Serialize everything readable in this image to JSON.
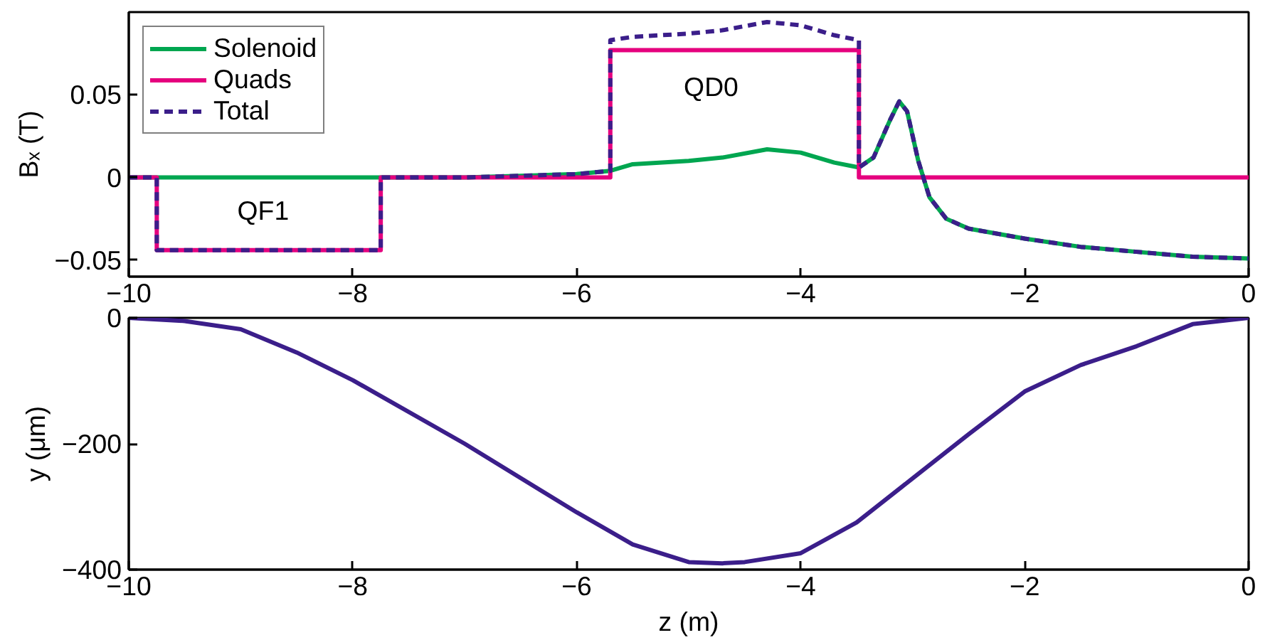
{
  "chart_data": [
    {
      "type": "line",
      "ylabel": "Bₓ (T)",
      "xlim": [
        -10,
        0
      ],
      "ylim": [
        -0.06,
        0.1
      ],
      "xticks": [
        -10,
        -8,
        -6,
        -4,
        -2,
        0
      ],
      "yticks": [
        -0.05,
        0,
        0.05
      ],
      "grid": false,
      "legend": "top left",
      "marker": "none",
      "annotations": [
        "QF1",
        "QD0"
      ],
      "series": [
        {
          "name": "Solenoid",
          "color": "#00a650",
          "line_style": "solid",
          "x": [
            -10,
            -7,
            -6.5,
            -6,
            -5.7,
            -5.5,
            -5,
            -4.7,
            -4.3,
            -4,
            -3.7,
            -3.48,
            -3.35,
            -3.2,
            -3.12,
            -3.05,
            -2.95,
            -2.85,
            -2.7,
            -2.5,
            -2,
            -1.5,
            -1,
            -0.5,
            0
          ],
          "values": [
            0,
            0,
            0.001,
            0.002,
            0.004,
            0.008,
            0.01,
            0.012,
            0.017,
            0.015,
            0.009,
            0.006,
            0.012,
            0.035,
            0.046,
            0.04,
            0.01,
            -0.012,
            -0.025,
            -0.031,
            -0.037,
            -0.042,
            -0.045,
            -0.048,
            -0.049
          ]
        },
        {
          "name": "Quads",
          "color": "#e5007e",
          "line_style": "solid",
          "x": [
            -10,
            -9.75,
            -9.75,
            -7.75,
            -7.75,
            -5.7,
            -5.7,
            -3.48,
            -3.48,
            0
          ],
          "values": [
            0,
            0,
            -0.044,
            -0.044,
            0,
            0,
            0.077,
            0.077,
            0,
            0
          ]
        },
        {
          "name": "Total",
          "color": "#3b1e8a",
          "line_style": "dashed",
          "x": [
            -10,
            -9.75,
            -9.75,
            -7.75,
            -7.75,
            -7,
            -6.5,
            -6,
            -5.7,
            -5.7,
            -5.5,
            -5,
            -4.7,
            -4.3,
            -4,
            -3.7,
            -3.48,
            -3.48,
            -3.35,
            -3.2,
            -3.12,
            -3.05,
            -2.95,
            -2.85,
            -2.7,
            -2.5,
            -2,
            -1.5,
            -1,
            -0.5,
            0
          ],
          "values": [
            0,
            0,
            -0.044,
            -0.044,
            0,
            0,
            0.001,
            0.002,
            0.004,
            0.083,
            0.085,
            0.087,
            0.089,
            0.094,
            0.092,
            0.086,
            0.083,
            0.006,
            0.012,
            0.035,
            0.046,
            0.04,
            0.01,
            -0.012,
            -0.025,
            -0.031,
            -0.037,
            -0.042,
            -0.045,
            -0.048,
            -0.049
          ]
        }
      ]
    },
    {
      "type": "line",
      "xlabel": "z (m)",
      "ylabel": "y (μm)",
      "xlim": [
        -10,
        0
      ],
      "ylim": [
        -400,
        0
      ],
      "xticks": [
        -10,
        -8,
        -6,
        -4,
        -2,
        0
      ],
      "yticks": [
        -400,
        -200,
        0
      ],
      "grid": false,
      "legend": false,
      "marker": "none",
      "series": [
        {
          "color": "#3b1e8a",
          "line_style": "solid",
          "x": [
            -10,
            -9.5,
            -9,
            -8.5,
            -8,
            -7,
            -6,
            -5.5,
            -5,
            -4.7,
            -4.5,
            -4,
            -3.5,
            -3,
            -2.5,
            -2,
            -1.5,
            -1,
            -0.5,
            0
          ],
          "values": [
            0,
            -5,
            -18,
            -55,
            -99,
            -200,
            -309,
            -360,
            -388,
            -390,
            -388,
            -374,
            -325,
            -255,
            -185,
            -117,
            -75,
            -45,
            -10,
            0
          ]
        }
      ]
    }
  ]
}
